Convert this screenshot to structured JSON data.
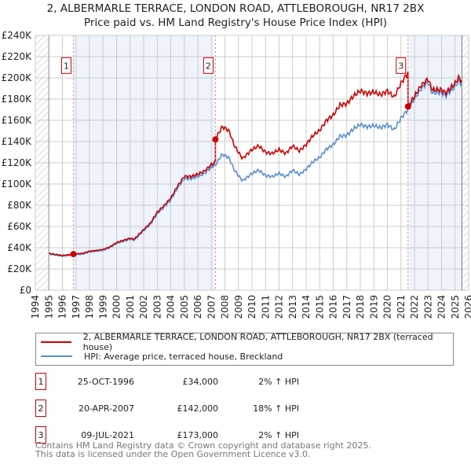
{
  "title": "2, ALBERMARLE TERRACE, LONDON ROAD, ATTLEBOROUGH, NR17 2BX",
  "subtitle": "Price paid vs. HM Land Registry's House Price Index (HPI)",
  "colors": {
    "property": "#cc0000",
    "hpi": "#5b8fd0",
    "shade": "#eef3fc"
  },
  "chart_data": {
    "type": "line",
    "xlim": [
      1994,
      2026
    ],
    "ylim": [
      0,
      240000
    ],
    "x_ticks": [
      "1994",
      "1995",
      "1996",
      "1997",
      "1998",
      "1999",
      "2000",
      "2001",
      "2002",
      "2003",
      "2004",
      "2005",
      "2006",
      "2007",
      "2008",
      "2009",
      "2010",
      "2011",
      "2012",
      "2013",
      "2014",
      "2015",
      "2016",
      "2017",
      "2018",
      "2019",
      "2020",
      "2021",
      "2022",
      "2023",
      "2024",
      "2025",
      "2026"
    ],
    "y_ticks": [
      {
        "v": 0,
        "label": "£0"
      },
      {
        "v": 20000,
        "label": "£20K"
      },
      {
        "v": 40000,
        "label": "£40K"
      },
      {
        "v": 60000,
        "label": "£60K"
      },
      {
        "v": 80000,
        "label": "£80K"
      },
      {
        "v": 100000,
        "label": "£100K"
      },
      {
        "v": 120000,
        "label": "£120K"
      },
      {
        "v": 140000,
        "label": "£140K"
      },
      {
        "v": 160000,
        "label": "£160K"
      },
      {
        "v": 180000,
        "label": "£180K"
      },
      {
        "v": 200000,
        "label": "£200K"
      },
      {
        "v": 220000,
        "label": "£220K"
      },
      {
        "v": 240000,
        "label": "£240K"
      }
    ],
    "hpi_series": [
      [
        1995.0,
        34000
      ],
      [
        1995.5,
        33000
      ],
      [
        1996.0,
        32000
      ],
      [
        1996.8,
        33300
      ],
      [
        1997.5,
        34000
      ],
      [
        1998.0,
        36000
      ],
      [
        1999.0,
        37500
      ],
      [
        1999.5,
        40000
      ],
      [
        2000.0,
        44000
      ],
      [
        2000.5,
        46000
      ],
      [
        2001.0,
        48000
      ],
      [
        2001.3,
        47000
      ],
      [
        2002.0,
        56000
      ],
      [
        2002.5,
        62000
      ],
      [
        2003.0,
        72000
      ],
      [
        2003.5,
        78000
      ],
      [
        2004.0,
        85000
      ],
      [
        2004.5,
        96000
      ],
      [
        2005.0,
        105000
      ],
      [
        2005.5,
        105000
      ],
      [
        2006.0,
        107000
      ],
      [
        2006.5,
        110000
      ],
      [
        2007.0,
        116000
      ],
      [
        2007.3,
        118000
      ],
      [
        2007.8,
        128000
      ],
      [
        2008.3,
        125000
      ],
      [
        2008.7,
        113000
      ],
      [
        2009.0,
        108000
      ],
      [
        2009.3,
        103000
      ],
      [
        2010.0,
        110000
      ],
      [
        2010.5,
        113000
      ],
      [
        2011.0,
        108000
      ],
      [
        2011.5,
        107000
      ],
      [
        2012.0,
        110000
      ],
      [
        2012.5,
        107000
      ],
      [
        2013.0,
        113000
      ],
      [
        2013.5,
        109000
      ],
      [
        2014.0,
        114000
      ],
      [
        2014.5,
        121000
      ],
      [
        2015.0,
        125000
      ],
      [
        2015.5,
        133000
      ],
      [
        2016.0,
        137000
      ],
      [
        2016.5,
        145000
      ],
      [
        2017.0,
        146000
      ],
      [
        2017.5,
        152000
      ],
      [
        2018.0,
        156000
      ],
      [
        2018.5,
        154000
      ],
      [
        2019.0,
        155000
      ],
      [
        2019.5,
        153000
      ],
      [
        2020.0,
        156000
      ],
      [
        2020.5,
        151000
      ],
      [
        2021.0,
        162000
      ],
      [
        2021.5,
        170000
      ],
      [
        2022.0,
        180000
      ],
      [
        2022.5,
        190000
      ],
      [
        2023.0,
        196000
      ],
      [
        2023.3,
        186000
      ],
      [
        2024.0,
        186000
      ],
      [
        2024.3,
        183000
      ],
      [
        2025.0,
        192000
      ],
      [
        2025.3,
        198000
      ],
      [
        2025.5,
        193000
      ]
    ],
    "sales": [
      {
        "x": 1996.81,
        "price": 34000,
        "label": "1"
      },
      {
        "x": 2007.3,
        "price": 142000,
        "label": "2"
      },
      {
        "x": 2021.52,
        "price": 173000,
        "label": "3"
      }
    ],
    "data_end": 2025.5
  },
  "legend": {
    "property": "2, ALBERMARLE TERRACE, LONDON ROAD, ATTLEBOROUGH, NR17 2BX (terraced house)",
    "hpi": "HPI: Average price, terraced house, Breckland"
  },
  "sales_table": [
    {
      "num": "1",
      "date": "25-OCT-1996",
      "price": "£34,000",
      "hpi": "2% ↑ HPI"
    },
    {
      "num": "2",
      "date": "20-APR-2007",
      "price": "£142,000",
      "hpi": "18% ↑ HPI"
    },
    {
      "num": "3",
      "date": "09-JUL-2021",
      "price": "£173,000",
      "hpi": "2% ↑ HPI"
    }
  ],
  "footer": {
    "line1": "Contains HM Land Registry data © Crown copyright and database right 2025.",
    "line2": "This data is licensed under the Open Government Licence v3.0."
  }
}
